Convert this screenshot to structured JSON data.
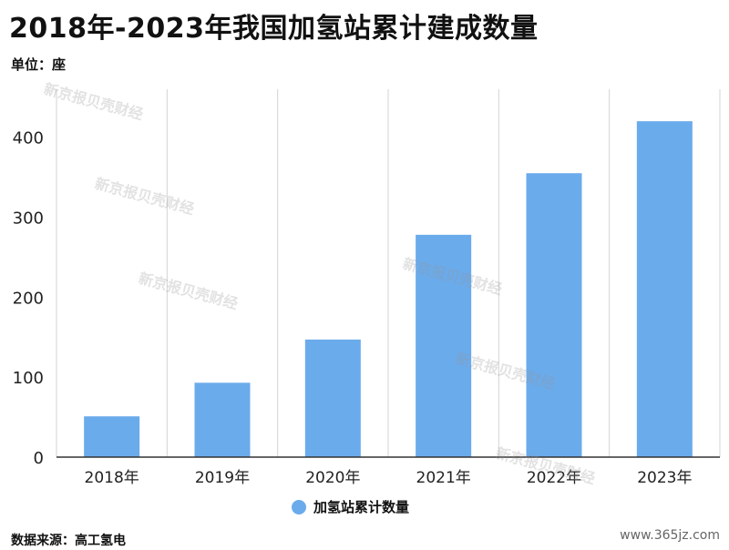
{
  "header": {
    "title": "2018年-2023年我国加氢站累计建成数量",
    "unit": "单位：座"
  },
  "footer": {
    "source": "数据来源：高工氢电",
    "site": "www.365jz.com"
  },
  "watermark": {
    "text": "新京报贝壳财经"
  },
  "colors": {
    "bar": "#6aabec",
    "grid": "#d3d3d3",
    "axis": "#333333",
    "tick_text": "#222222"
  },
  "chart_data": {
    "type": "bar",
    "categories": [
      "2018年",
      "2019年",
      "2020年",
      "2021年",
      "2022年",
      "2023年"
    ],
    "series": [
      {
        "name": "加氢站累计数量",
        "values": [
          51,
          93,
          147,
          278,
          355,
          420
        ]
      }
    ],
    "title": "2018年-2023年我国加氢站累计建成数量",
    "xlabel": "",
    "ylabel": "",
    "ylim": [
      0,
      460
    ],
    "yticks": [
      0,
      100,
      200,
      300,
      400
    ],
    "grid": "vertical",
    "legend": "bottom-center"
  }
}
